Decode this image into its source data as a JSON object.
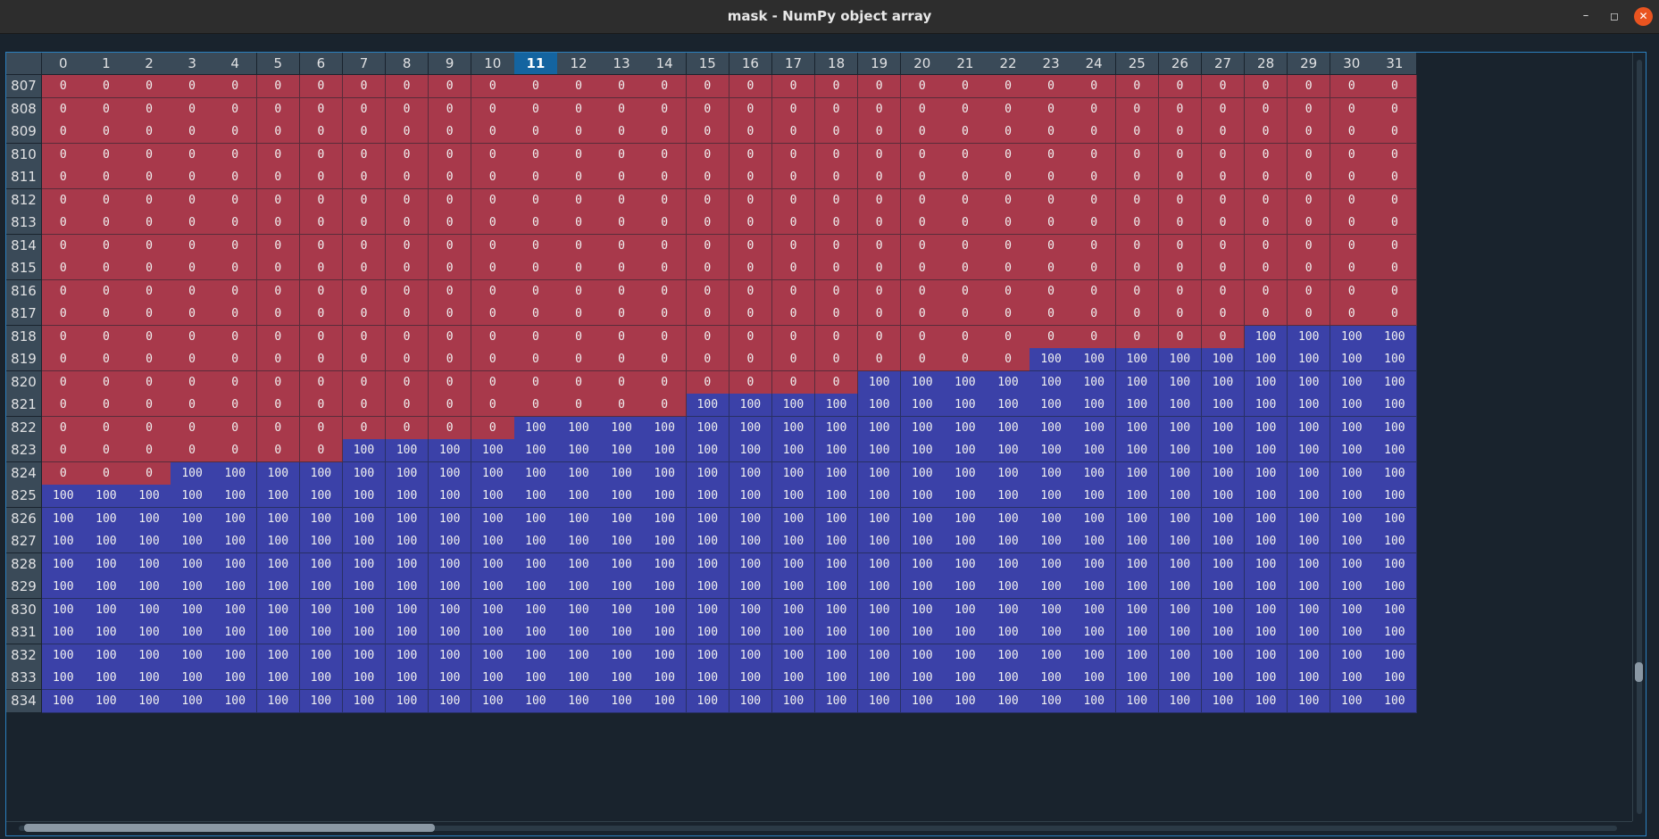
{
  "window": {
    "title": "mask - NumPy object array",
    "controls": {
      "minimize": "–",
      "maximize": "◻",
      "close": "✕"
    }
  },
  "table": {
    "selected_column": "11",
    "columns": [
      "0",
      "1",
      "2",
      "3",
      "4",
      "5",
      "6",
      "7",
      "8",
      "9",
      "10",
      "11",
      "12",
      "13",
      "14",
      "15",
      "16",
      "17",
      "18",
      "19",
      "20",
      "21",
      "22",
      "23",
      "24",
      "25",
      "26",
      "27",
      "28",
      "29",
      "30",
      "31"
    ],
    "rows": [
      {
        "label": "807",
        "cells": [
          "0",
          "0",
          "0",
          "0",
          "0",
          "0",
          "0",
          "0",
          "0",
          "0",
          "0",
          "0",
          "0",
          "0",
          "0",
          "0",
          "0",
          "0",
          "0",
          "0",
          "0",
          "0",
          "0",
          "0",
          "0",
          "0",
          "0",
          "0",
          "0",
          "0",
          "0",
          "0"
        ]
      },
      {
        "label": "808",
        "cells": [
          "0",
          "0",
          "0",
          "0",
          "0",
          "0",
          "0",
          "0",
          "0",
          "0",
          "0",
          "0",
          "0",
          "0",
          "0",
          "0",
          "0",
          "0",
          "0",
          "0",
          "0",
          "0",
          "0",
          "0",
          "0",
          "0",
          "0",
          "0",
          "0",
          "0",
          "0",
          "0"
        ]
      },
      {
        "label": "809",
        "cells": [
          "0",
          "0",
          "0",
          "0",
          "0",
          "0",
          "0",
          "0",
          "0",
          "0",
          "0",
          "0",
          "0",
          "0",
          "0",
          "0",
          "0",
          "0",
          "0",
          "0",
          "0",
          "0",
          "0",
          "0",
          "0",
          "0",
          "0",
          "0",
          "0",
          "0",
          "0",
          "0"
        ]
      },
      {
        "label": "810",
        "cells": [
          "0",
          "0",
          "0",
          "0",
          "0",
          "0",
          "0",
          "0",
          "0",
          "0",
          "0",
          "0",
          "0",
          "0",
          "0",
          "0",
          "0",
          "0",
          "0",
          "0",
          "0",
          "0",
          "0",
          "0",
          "0",
          "0",
          "0",
          "0",
          "0",
          "0",
          "0",
          "0"
        ]
      },
      {
        "label": "811",
        "cells": [
          "0",
          "0",
          "0",
          "0",
          "0",
          "0",
          "0",
          "0",
          "0",
          "0",
          "0",
          "0",
          "0",
          "0",
          "0",
          "0",
          "0",
          "0",
          "0",
          "0",
          "0",
          "0",
          "0",
          "0",
          "0",
          "0",
          "0",
          "0",
          "0",
          "0",
          "0",
          "0"
        ]
      },
      {
        "label": "812",
        "cells": [
          "0",
          "0",
          "0",
          "0",
          "0",
          "0",
          "0",
          "0",
          "0",
          "0",
          "0",
          "0",
          "0",
          "0",
          "0",
          "0",
          "0",
          "0",
          "0",
          "0",
          "0",
          "0",
          "0",
          "0",
          "0",
          "0",
          "0",
          "0",
          "0",
          "0",
          "0",
          "0"
        ]
      },
      {
        "label": "813",
        "cells": [
          "0",
          "0",
          "0",
          "0",
          "0",
          "0",
          "0",
          "0",
          "0",
          "0",
          "0",
          "0",
          "0",
          "0",
          "0",
          "0",
          "0",
          "0",
          "0",
          "0",
          "0",
          "0",
          "0",
          "0",
          "0",
          "0",
          "0",
          "0",
          "0",
          "0",
          "0",
          "0"
        ]
      },
      {
        "label": "814",
        "cells": [
          "0",
          "0",
          "0",
          "0",
          "0",
          "0",
          "0",
          "0",
          "0",
          "0",
          "0",
          "0",
          "0",
          "0",
          "0",
          "0",
          "0",
          "0",
          "0",
          "0",
          "0",
          "0",
          "0",
          "0",
          "0",
          "0",
          "0",
          "0",
          "0",
          "0",
          "0",
          "0"
        ]
      },
      {
        "label": "815",
        "cells": [
          "0",
          "0",
          "0",
          "0",
          "0",
          "0",
          "0",
          "0",
          "0",
          "0",
          "0",
          "0",
          "0",
          "0",
          "0",
          "0",
          "0",
          "0",
          "0",
          "0",
          "0",
          "0",
          "0",
          "0",
          "0",
          "0",
          "0",
          "0",
          "0",
          "0",
          "0",
          "0"
        ]
      },
      {
        "label": "816",
        "cells": [
          "0",
          "0",
          "0",
          "0",
          "0",
          "0",
          "0",
          "0",
          "0",
          "0",
          "0",
          "0",
          "0",
          "0",
          "0",
          "0",
          "0",
          "0",
          "0",
          "0",
          "0",
          "0",
          "0",
          "0",
          "0",
          "0",
          "0",
          "0",
          "0",
          "0",
          "0",
          "0"
        ]
      },
      {
        "label": "817",
        "cells": [
          "0",
          "0",
          "0",
          "0",
          "0",
          "0",
          "0",
          "0",
          "0",
          "0",
          "0",
          "0",
          "0",
          "0",
          "0",
          "0",
          "0",
          "0",
          "0",
          "0",
          "0",
          "0",
          "0",
          "0",
          "0",
          "0",
          "0",
          "0",
          "0",
          "0",
          "0",
          "0"
        ]
      },
      {
        "label": "818",
        "cells": [
          "0",
          "0",
          "0",
          "0",
          "0",
          "0",
          "0",
          "0",
          "0",
          "0",
          "0",
          "0",
          "0",
          "0",
          "0",
          "0",
          "0",
          "0",
          "0",
          "0",
          "0",
          "0",
          "0",
          "0",
          "0",
          "0",
          "0",
          "0",
          "100",
          "100",
          "100",
          "100"
        ]
      },
      {
        "label": "819",
        "cells": [
          "0",
          "0",
          "0",
          "0",
          "0",
          "0",
          "0",
          "0",
          "0",
          "0",
          "0",
          "0",
          "0",
          "0",
          "0",
          "0",
          "0",
          "0",
          "0",
          "0",
          "0",
          "0",
          "0",
          "100",
          "100",
          "100",
          "100",
          "100",
          "100",
          "100",
          "100",
          "100"
        ]
      },
      {
        "label": "820",
        "cells": [
          "0",
          "0",
          "0",
          "0",
          "0",
          "0",
          "0",
          "0",
          "0",
          "0",
          "0",
          "0",
          "0",
          "0",
          "0",
          "0",
          "0",
          "0",
          "0",
          "100",
          "100",
          "100",
          "100",
          "100",
          "100",
          "100",
          "100",
          "100",
          "100",
          "100",
          "100",
          "100"
        ]
      },
      {
        "label": "821",
        "cells": [
          "0",
          "0",
          "0",
          "0",
          "0",
          "0",
          "0",
          "0",
          "0",
          "0",
          "0",
          "0",
          "0",
          "0",
          "0",
          "100",
          "100",
          "100",
          "100",
          "100",
          "100",
          "100",
          "100",
          "100",
          "100",
          "100",
          "100",
          "100",
          "100",
          "100",
          "100",
          "100"
        ]
      },
      {
        "label": "822",
        "cells": [
          "0",
          "0",
          "0",
          "0",
          "0",
          "0",
          "0",
          "0",
          "0",
          "0",
          "0",
          "100",
          "100",
          "100",
          "100",
          "100",
          "100",
          "100",
          "100",
          "100",
          "100",
          "100",
          "100",
          "100",
          "100",
          "100",
          "100",
          "100",
          "100",
          "100",
          "100",
          "100"
        ]
      },
      {
        "label": "823",
        "cells": [
          "0",
          "0",
          "0",
          "0",
          "0",
          "0",
          "0",
          "100",
          "100",
          "100",
          "100",
          "100",
          "100",
          "100",
          "100",
          "100",
          "100",
          "100",
          "100",
          "100",
          "100",
          "100",
          "100",
          "100",
          "100",
          "100",
          "100",
          "100",
          "100",
          "100",
          "100",
          "100"
        ]
      },
      {
        "label": "824",
        "cells": [
          "0",
          "0",
          "0",
          "100",
          "100",
          "100",
          "100",
          "100",
          "100",
          "100",
          "100",
          "100",
          "100",
          "100",
          "100",
          "100",
          "100",
          "100",
          "100",
          "100",
          "100",
          "100",
          "100",
          "100",
          "100",
          "100",
          "100",
          "100",
          "100",
          "100",
          "100",
          "100"
        ]
      },
      {
        "label": "825",
        "cells": [
          "100",
          "100",
          "100",
          "100",
          "100",
          "100",
          "100",
          "100",
          "100",
          "100",
          "100",
          "100",
          "100",
          "100",
          "100",
          "100",
          "100",
          "100",
          "100",
          "100",
          "100",
          "100",
          "100",
          "100",
          "100",
          "100",
          "100",
          "100",
          "100",
          "100",
          "100",
          "100"
        ]
      },
      {
        "label": "826",
        "cells": [
          "100",
          "100",
          "100",
          "100",
          "100",
          "100",
          "100",
          "100",
          "100",
          "100",
          "100",
          "100",
          "100",
          "100",
          "100",
          "100",
          "100",
          "100",
          "100",
          "100",
          "100",
          "100",
          "100",
          "100",
          "100",
          "100",
          "100",
          "100",
          "100",
          "100",
          "100",
          "100"
        ]
      },
      {
        "label": "827",
        "cells": [
          "100",
          "100",
          "100",
          "100",
          "100",
          "100",
          "100",
          "100",
          "100",
          "100",
          "100",
          "100",
          "100",
          "100",
          "100",
          "100",
          "100",
          "100",
          "100",
          "100",
          "100",
          "100",
          "100",
          "100",
          "100",
          "100",
          "100",
          "100",
          "100",
          "100",
          "100",
          "100"
        ]
      },
      {
        "label": "828",
        "cells": [
          "100",
          "100",
          "100",
          "100",
          "100",
          "100",
          "100",
          "100",
          "100",
          "100",
          "100",
          "100",
          "100",
          "100",
          "100",
          "100",
          "100",
          "100",
          "100",
          "100",
          "100",
          "100",
          "100",
          "100",
          "100",
          "100",
          "100",
          "100",
          "100",
          "100",
          "100",
          "100"
        ]
      },
      {
        "label": "829",
        "cells": [
          "100",
          "100",
          "100",
          "100",
          "100",
          "100",
          "100",
          "100",
          "100",
          "100",
          "100",
          "100",
          "100",
          "100",
          "100",
          "100",
          "100",
          "100",
          "100",
          "100",
          "100",
          "100",
          "100",
          "100",
          "100",
          "100",
          "100",
          "100",
          "100",
          "100",
          "100",
          "100"
        ]
      },
      {
        "label": "830",
        "cells": [
          "100",
          "100",
          "100",
          "100",
          "100",
          "100",
          "100",
          "100",
          "100",
          "100",
          "100",
          "100",
          "100",
          "100",
          "100",
          "100",
          "100",
          "100",
          "100",
          "100",
          "100",
          "100",
          "100",
          "100",
          "100",
          "100",
          "100",
          "100",
          "100",
          "100",
          "100",
          "100"
        ]
      },
      {
        "label": "831",
        "cells": [
          "100",
          "100",
          "100",
          "100",
          "100",
          "100",
          "100",
          "100",
          "100",
          "100",
          "100",
          "100",
          "100",
          "100",
          "100",
          "100",
          "100",
          "100",
          "100",
          "100",
          "100",
          "100",
          "100",
          "100",
          "100",
          "100",
          "100",
          "100",
          "100",
          "100",
          "100",
          "100"
        ]
      },
      {
        "label": "832",
        "cells": [
          "100",
          "100",
          "100",
          "100",
          "100",
          "100",
          "100",
          "100",
          "100",
          "100",
          "100",
          "100",
          "100",
          "100",
          "100",
          "100",
          "100",
          "100",
          "100",
          "100",
          "100",
          "100",
          "100",
          "100",
          "100",
          "100",
          "100",
          "100",
          "100",
          "100",
          "100",
          "100"
        ]
      },
      {
        "label": "833",
        "cells": [
          "100",
          "100",
          "100",
          "100",
          "100",
          "100",
          "100",
          "100",
          "100",
          "100",
          "100",
          "100",
          "100",
          "100",
          "100",
          "100",
          "100",
          "100",
          "100",
          "100",
          "100",
          "100",
          "100",
          "100",
          "100",
          "100",
          "100",
          "100",
          "100",
          "100",
          "100",
          "100"
        ]
      },
      {
        "label": "834",
        "cells": [
          "100",
          "100",
          "100",
          "100",
          "100",
          "100",
          "100",
          "100",
          "100",
          "100",
          "100",
          "100",
          "100",
          "100",
          "100",
          "100",
          "100",
          "100",
          "100",
          "100",
          "100",
          "100",
          "100",
          "100",
          "100",
          "100",
          "100",
          "100",
          "100",
          "100",
          "100",
          "100"
        ]
      }
    ]
  },
  "colors": {
    "low_value_cell": "#a8394b",
    "high_value_cell": "#3b41a8",
    "header_bg": "#3a4a58",
    "selected_header_bg": "#1464a0",
    "background": "#19232d",
    "close_button": "#e95420"
  }
}
